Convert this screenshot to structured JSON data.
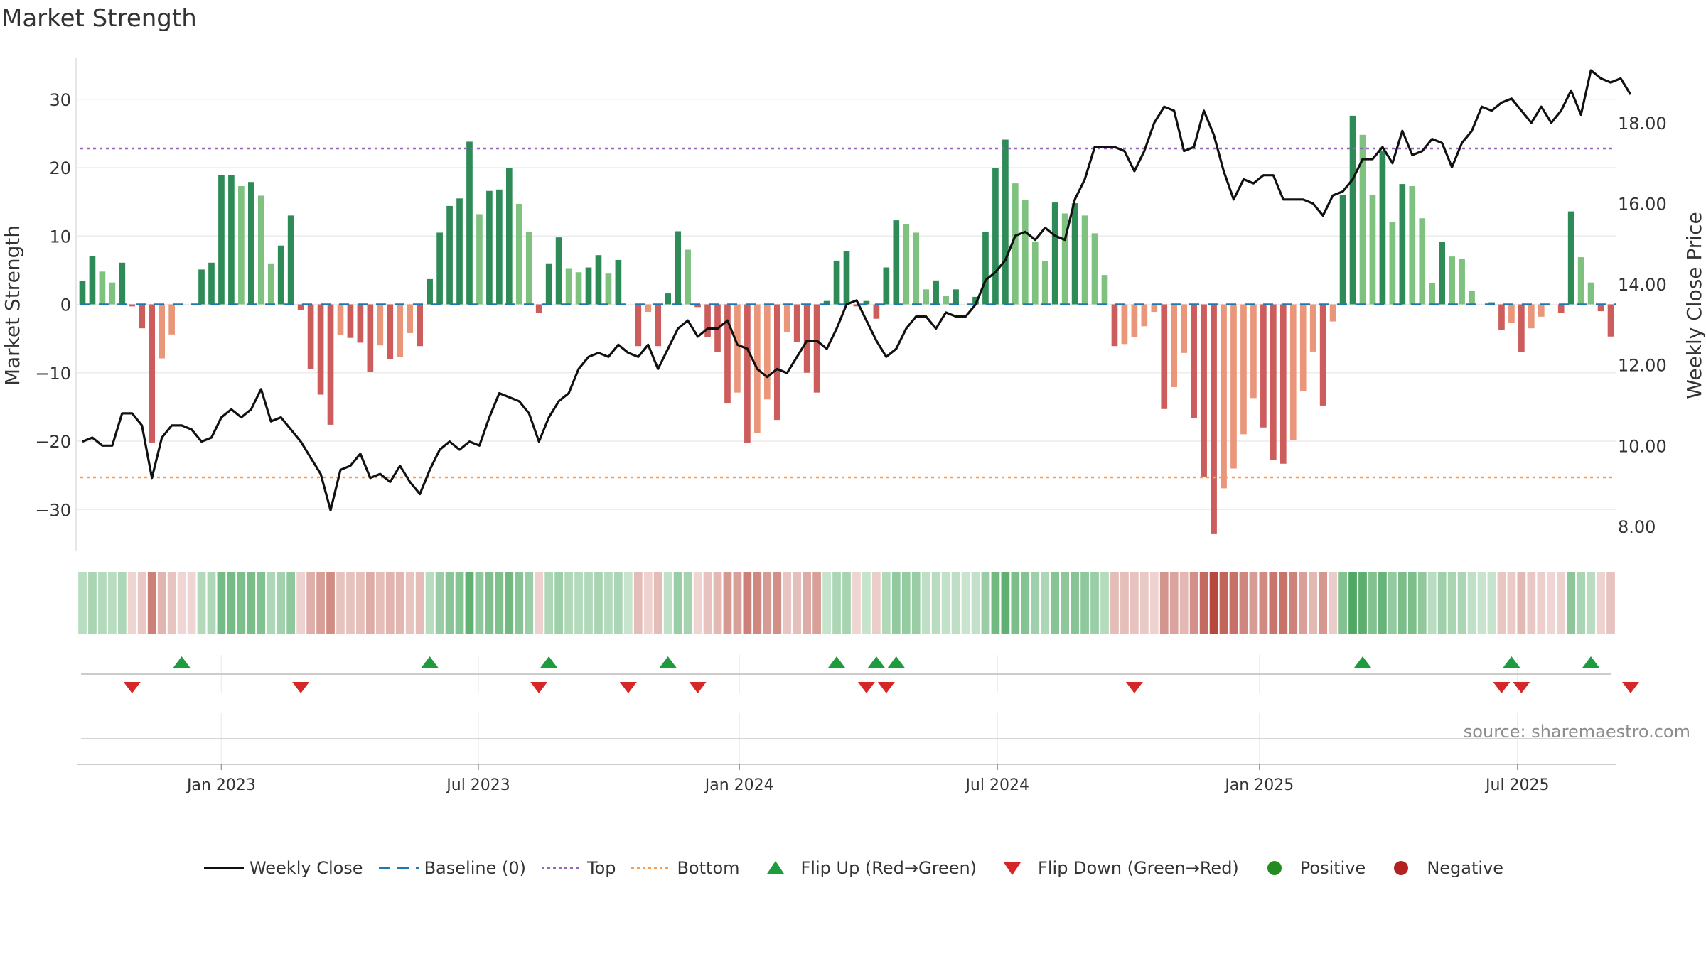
{
  "chart_data": {
    "type": "bar",
    "title": "Market Strength",
    "ylabel": "Market Strength",
    "y2label": "Weekly Close Price",
    "ylim": [
      -36,
      36
    ],
    "y2lim": [
      7.4,
      19.6
    ],
    "yticks": [
      -30,
      -20,
      -10,
      0,
      10,
      20,
      30
    ],
    "ytick_labels": [
      "−30",
      "−20",
      "−10",
      "0",
      "10",
      "20",
      "30"
    ],
    "y2ticks": [
      8,
      10,
      12,
      14,
      16,
      18
    ],
    "y2tick_labels": [
      "8.00",
      "10.00",
      "12.00",
      "14.00",
      "16.00",
      "18.00"
    ],
    "xtick_labels": [
      "Jan 2023",
      "Jul 2023",
      "Jan 2024",
      "Jul 2024",
      "Jan 2025",
      "Jul 2025"
    ],
    "xtick_weeks": [
      14.5,
      40.4,
      66.7,
      92.7,
      119.1,
      145.1
    ],
    "top_line": 22.8,
    "bottom_line": -25.3,
    "baseline": 0,
    "series": [
      {
        "name": "Market Strength",
        "values": [
          3.4,
          7.1,
          4.8,
          3.2,
          6.1,
          -0.3,
          -3.5,
          -20.2,
          -7.9,
          -4.4,
          0,
          0,
          5.1,
          6.1,
          18.9,
          18.9,
          17.3,
          17.9,
          15.9,
          6.0,
          8.6,
          13.0,
          -0.8,
          -9.4,
          -13.2,
          -17.6,
          -4.5,
          -4.9,
          -5.6,
          -9.9,
          -6.0,
          -8.0,
          -7.7,
          -4.2,
          -6.1,
          3.7,
          10.5,
          14.4,
          15.5,
          23.8,
          13.2,
          16.6,
          16.8,
          19.9,
          14.7,
          10.6,
          -1.3,
          6.0,
          9.8,
          5.3,
          4.7,
          5.4,
          7.2,
          4.5,
          6.5,
          0,
          -6.1,
          -1.1,
          -6.1,
          1.6,
          10.7,
          8.0,
          -0.4,
          -4.8,
          -7.0,
          -14.5,
          -12.9,
          -20.3,
          -18.8,
          -13.9,
          -16.9,
          -4.1,
          -5.5,
          -10.0,
          -12.9,
          0.5,
          6.4,
          7.8,
          -0.3,
          0.5,
          -2.1,
          5.4,
          12.3,
          11.7,
          10.5,
          2.2,
          3.5,
          1.3,
          2.2,
          0,
          1.1,
          10.6,
          19.9,
          24.1,
          17.7,
          15.3,
          9.1,
          6.3,
          14.9,
          13.3,
          14.8,
          13.0,
          10.4,
          4.3,
          -6.1,
          -5.8,
          -4.8,
          -3.2,
          -1.1,
          -15.3,
          -12.1,
          -7.1,
          -16.6,
          -25.3,
          -33.6,
          -26.9,
          -24.0,
          -19.0,
          -13.7,
          -18.0,
          -22.8,
          -23.3,
          -19.8,
          -12.7,
          -6.9,
          -14.8,
          -2.5,
          16.0,
          27.6,
          24.8,
          16.0,
          22.5,
          12.0,
          17.6,
          17.3,
          12.6,
          3.1,
          9.1,
          7.0,
          6.7,
          2.0,
          0,
          0.3,
          -3.7,
          -2.7,
          -7.0,
          -3.5,
          -1.8,
          0,
          -1.2,
          13.6,
          6.9,
          3.2,
          -1.0,
          -4.7
        ]
      },
      {
        "name": "Weekly Close",
        "values": [
          10.1,
          10.2,
          10.0,
          10.0,
          10.8,
          10.8,
          10.5,
          9.2,
          10.2,
          10.5,
          10.5,
          10.4,
          10.1,
          10.2,
          10.7,
          10.9,
          10.7,
          10.9,
          11.4,
          10.6,
          10.7,
          10.4,
          10.1,
          9.7,
          9.3,
          8.4,
          9.4,
          9.5,
          9.8,
          9.2,
          9.3,
          9.1,
          9.5,
          9.1,
          8.8,
          9.4,
          9.9,
          10.1,
          9.9,
          10.1,
          10.0,
          10.7,
          11.3,
          11.2,
          11.1,
          10.8,
          10.1,
          10.7,
          11.1,
          11.3,
          11.9,
          12.2,
          12.3,
          12.2,
          12.5,
          12.3,
          12.2,
          12.5,
          11.9,
          12.4,
          12.9,
          13.1,
          12.7,
          12.9,
          12.9,
          13.1,
          12.5,
          12.4,
          11.9,
          11.7,
          11.9,
          11.8,
          12.2,
          12.6,
          12.6,
          12.4,
          12.9,
          13.5,
          13.6,
          13.1,
          12.6,
          12.2,
          12.4,
          12.9,
          13.2,
          13.2,
          12.9,
          13.3,
          13.2,
          13.2,
          13.5,
          14.1,
          14.3,
          14.6,
          15.2,
          15.3,
          15.1,
          15.4,
          15.2,
          15.1,
          16.1,
          16.6,
          17.4,
          17.4,
          17.4,
          17.3,
          16.8,
          17.3,
          18.0,
          18.4,
          18.3,
          17.3,
          17.4,
          18.3,
          17.7,
          16.8,
          16.1,
          16.6,
          16.5,
          16.7,
          16.7,
          16.1,
          16.1,
          16.1,
          16.0,
          15.7,
          16.2,
          16.3,
          16.6,
          17.1,
          17.1,
          17.4,
          17.0,
          17.8,
          17.2,
          17.3,
          17.6,
          17.5,
          16.9,
          17.5,
          17.8,
          18.4,
          18.3,
          18.5,
          18.6,
          18.3,
          18.0,
          18.4,
          18.0,
          18.3,
          18.8,
          18.2,
          19.3,
          19.1,
          19.0,
          19.1,
          18.7
        ]
      }
    ],
    "flip_up_weeks": [
      10,
      35,
      47,
      59,
      76,
      80,
      82,
      129,
      144,
      152
    ],
    "flip_down_weeks": [
      5,
      22,
      46,
      55,
      62,
      79,
      81,
      106,
      143,
      145,
      156
    ],
    "legend": [
      "Weekly Close",
      "Baseline (0)",
      "Top",
      "Bottom",
      "Flip Up (Red→Green)",
      "Flip Down (Green→Red)",
      "Positive",
      "Negative"
    ],
    "legend_position": "bottom-center",
    "colors": {
      "pos_dark": "#2e8b57",
      "pos_light": "#7fc17f",
      "neg_dark": "#cd5c5c",
      "neg_light": "#e9967a",
      "close": "#111111",
      "baseline": "#1f77b4",
      "top": "#9467bd",
      "bottom": "#ff9c4a",
      "flip_up": "#1e9b3c",
      "flip_down": "#d62728",
      "positive_dot": "#228b22",
      "negative_dot": "#b22222"
    }
  },
  "source_text": "source: sharemaestro.com"
}
